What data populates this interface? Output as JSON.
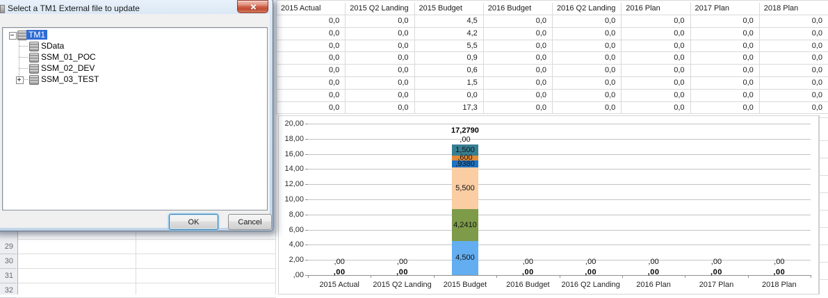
{
  "dialog": {
    "title": "Select a TM1 External file to update",
    "close_tooltip": "Close",
    "tree": {
      "root": {
        "label": "TM1",
        "selected": true,
        "expander": "minus"
      },
      "children": [
        {
          "label": "SData",
          "expander": "none"
        },
        {
          "label": "SSM_01_POC",
          "expander": "none"
        },
        {
          "label": "SSM_02_DEV",
          "expander": "none"
        },
        {
          "label": "SSM_03_TEST",
          "expander": "plus"
        }
      ]
    },
    "ok_label": "OK",
    "cancel_label": "Cancel"
  },
  "sheet": {
    "columns": [
      "2015 Actual",
      "2015 Q2 Landing",
      "2015 Budget",
      "2016 Budget",
      "2016 Q2 Landing",
      "2016 Plan",
      "2017 Plan",
      "2018 Plan"
    ],
    "rows": [
      [
        "0,0",
        "0,0",
        "4,5",
        "0,0",
        "0,0",
        "0,0",
        "0,0",
        "0,0"
      ],
      [
        "0,0",
        "0,0",
        "4,2",
        "0,0",
        "0,0",
        "0,0",
        "0,0",
        "0,0"
      ],
      [
        "0,0",
        "0,0",
        "5,5",
        "0,0",
        "0,0",
        "0,0",
        "0,0",
        "0,0"
      ],
      [
        "0,0",
        "0,0",
        "0,9",
        "0,0",
        "0,0",
        "0,0",
        "0,0",
        "0,0"
      ],
      [
        "0,0",
        "0,0",
        "0,6",
        "0,0",
        "0,0",
        "0,0",
        "0,0",
        "0,0"
      ],
      [
        "0,0",
        "0,0",
        "1,5",
        "0,0",
        "0,0",
        "0,0",
        "0,0",
        "0,0"
      ],
      [
        "0,0",
        "0,0",
        "0,0",
        "0,0",
        "0,0",
        "0,0",
        "0,0",
        "0,0"
      ],
      [
        "0,0",
        "0,0",
        "17,3",
        "0,0",
        "0,0",
        "0,0",
        "0,0",
        "0,0"
      ]
    ],
    "row_headers": [
      "29",
      "30",
      "31",
      "32"
    ]
  },
  "chart_data": {
    "type": "bar",
    "stacked": true,
    "title": "",
    "categories": [
      "2015 Actual",
      "2015 Q2 Landing",
      "2015 Budget",
      "2016 Budget",
      "2016 Q2 Landing",
      "2016 Plan",
      "2017 Plan",
      "2018 Plan"
    ],
    "series": [
      {
        "label": "4,500",
        "color": "#63AEF0",
        "values": [
          0,
          0,
          4.5,
          0,
          0,
          0,
          0,
          0
        ]
      },
      {
        "label": "4,2410",
        "color": "#7D9B49",
        "values": [
          0,
          0,
          4.241,
          0,
          0,
          0,
          0,
          0
        ]
      },
      {
        "label": "5,500",
        "color": "#FACDA3",
        "values": [
          0,
          0,
          5.5,
          0,
          0,
          0,
          0,
          0
        ]
      },
      {
        "label": ",9380",
        "color": "#1F72C2",
        "values": [
          0,
          0,
          0.938,
          0,
          0,
          0,
          0,
          0
        ]
      },
      {
        "label": ",600",
        "color": "#E18A3A",
        "values": [
          0,
          0,
          0.6,
          0,
          0,
          0,
          0,
          0
        ]
      },
      {
        "label": "1,500",
        "color": "#377F92",
        "values": [
          0,
          0,
          1.5,
          0,
          0,
          0,
          0,
          0
        ]
      },
      {
        "label": ",00",
        "color": null,
        "values": [
          0,
          0,
          0,
          0,
          0,
          0,
          0,
          0
        ]
      }
    ],
    "stack_total": 17.279,
    "stack_total_label": "17,2790",
    "zero_upper_label": ",00",
    "zero_axis_label": ",00",
    "yticks": [
      "20,00",
      "18,00",
      "16,00",
      "14,00",
      "12,00",
      "10,00",
      "8,00",
      "6,00",
      "4,00",
      "2,00",
      ",00"
    ],
    "ylim": [
      0,
      20
    ],
    "ytick_step": 2,
    "grid": true,
    "legend": "none"
  }
}
